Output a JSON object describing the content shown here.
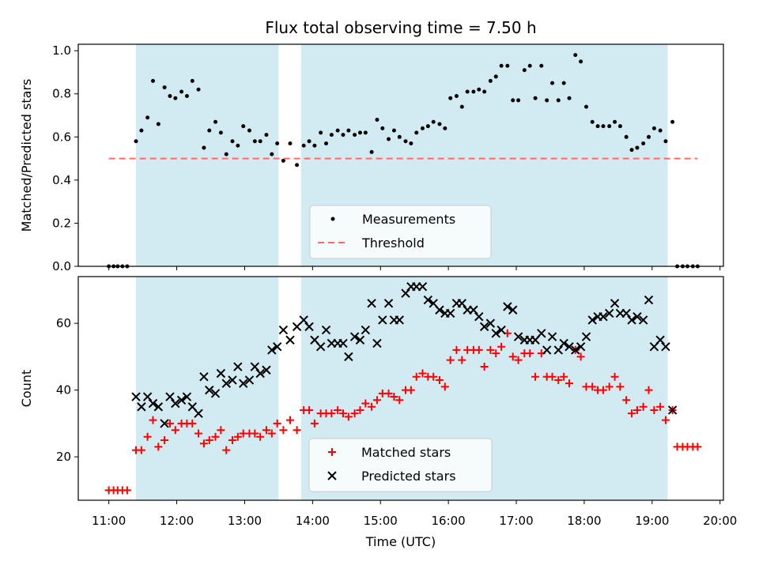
{
  "chart_data": {
    "title": "Flux total observing time = 7.50 h",
    "xlabel": "Time (UTC)",
    "x_ticks": [
      "11:00",
      "12:00",
      "13:00",
      "14:00",
      "15:00",
      "16:00",
      "17:00",
      "18:00",
      "19:00",
      "20:00"
    ],
    "x_range_hours": [
      10.55,
      20.05
    ],
    "observing_windows_hours": [
      [
        11.4,
        13.5
      ],
      [
        13.83,
        19.23
      ]
    ],
    "window_color": "#add8e6",
    "panels": [
      {
        "type": "scatter",
        "ylabel": "Matched/Predicted stars",
        "ylim": [
          0,
          1.03
        ],
        "y_ticks": [
          "0.0",
          "0.2",
          "0.4",
          "0.6",
          "0.8",
          "1.0"
        ],
        "legend_position": "lower-center",
        "series": [
          {
            "name": "Measurements",
            "marker": "dot",
            "color": "#000000",
            "x_hours": [
              11.0,
              11.07,
              11.13,
              11.2,
              11.27,
              11.4,
              11.48,
              11.57,
              11.65,
              11.73,
              11.82,
              11.9,
              11.98,
              12.07,
              12.15,
              12.23,
              12.32,
              12.4,
              12.48,
              12.57,
              12.65,
              12.73,
              12.82,
              12.9,
              12.98,
              13.07,
              13.15,
              13.23,
              13.32,
              13.4,
              13.48,
              13.57,
              13.67,
              13.77,
              13.87,
              13.95,
              14.03,
              14.12,
              14.2,
              14.28,
              14.37,
              14.45,
              14.53,
              14.62,
              14.7,
              14.78,
              14.87,
              14.95,
              15.03,
              15.12,
              15.2,
              15.28,
              15.37,
              15.45,
              15.53,
              15.62,
              15.7,
              15.78,
              15.87,
              15.95,
              16.03,
              16.12,
              16.2,
              16.28,
              16.37,
              16.45,
              16.53,
              16.62,
              16.7,
              16.78,
              16.87,
              16.95,
              17.03,
              17.12,
              17.2,
              17.28,
              17.37,
              17.45,
              17.53,
              17.62,
              17.7,
              17.78,
              17.87,
              17.95,
              18.03,
              18.12,
              18.2,
              18.28,
              18.37,
              18.45,
              18.53,
              18.62,
              18.7,
              18.78,
              18.87,
              18.95,
              19.03,
              19.12,
              19.2,
              19.3,
              19.37,
              19.45,
              19.52,
              19.6,
              19.67
            ],
            "y": [
              0.0,
              0.0,
              0.0,
              0.0,
              0.0,
              0.58,
              0.63,
              0.69,
              0.86,
              0.66,
              0.83,
              0.79,
              0.78,
              0.81,
              0.79,
              0.86,
              0.82,
              0.55,
              0.63,
              0.67,
              0.62,
              0.52,
              0.58,
              0.56,
              0.65,
              0.63,
              0.58,
              0.58,
              0.61,
              0.52,
              0.57,
              0.49,
              0.57,
              0.47,
              0.56,
              0.58,
              0.56,
              0.62,
              0.57,
              0.61,
              0.63,
              0.61,
              0.63,
              0.61,
              0.62,
              0.62,
              0.53,
              0.68,
              0.64,
              0.59,
              0.63,
              0.6,
              0.58,
              0.57,
              0.62,
              0.64,
              0.65,
              0.67,
              0.66,
              0.64,
              0.78,
              0.79,
              0.74,
              0.81,
              0.81,
              0.82,
              0.81,
              0.86,
              0.88,
              0.93,
              0.93,
              0.77,
              0.77,
              0.91,
              0.93,
              0.78,
              0.93,
              0.77,
              0.85,
              0.77,
              0.85,
              0.78,
              0.98,
              0.95,
              0.74,
              0.67,
              0.65,
              0.65,
              0.65,
              0.67,
              0.65,
              0.6,
              0.54,
              0.55,
              0.57,
              0.6,
              0.64,
              0.63,
              0.58,
              0.67,
              0.0,
              0.0,
              0.0,
              0.0,
              0.0
            ]
          },
          {
            "name": "Threshold",
            "marker": "dashed-line",
            "color": "#ff6b6b",
            "x_hours": [
              11.0,
              19.67
            ],
            "y": [
              0.5,
              0.5
            ]
          }
        ]
      },
      {
        "type": "scatter",
        "ylabel": "Count",
        "ylim": [
          7,
          74
        ],
        "y_ticks": [
          "20",
          "40",
          "60"
        ],
        "legend_position": "lower-center",
        "series": [
          {
            "name": "Matched stars",
            "marker": "plus",
            "color": "#ff0000",
            "x_hours": [
              11.0,
              11.07,
              11.13,
              11.2,
              11.27,
              11.4,
              11.48,
              11.57,
              11.65,
              11.73,
              11.82,
              11.9,
              11.98,
              12.07,
              12.15,
              12.23,
              12.32,
              12.4,
              12.48,
              12.57,
              12.65,
              12.73,
              12.82,
              12.9,
              12.98,
              13.07,
              13.15,
              13.23,
              13.32,
              13.4,
              13.48,
              13.57,
              13.67,
              13.77,
              13.87,
              13.95,
              14.03,
              14.12,
              14.2,
              14.28,
              14.37,
              14.45,
              14.53,
              14.62,
              14.7,
              14.78,
              14.87,
              14.95,
              15.03,
              15.12,
              15.2,
              15.28,
              15.37,
              15.45,
              15.53,
              15.62,
              15.7,
              15.78,
              15.87,
              15.95,
              16.03,
              16.12,
              16.2,
              16.28,
              16.37,
              16.45,
              16.53,
              16.62,
              16.7,
              16.78,
              16.87,
              16.95,
              17.03,
              17.12,
              17.2,
              17.28,
              17.37,
              17.45,
              17.53,
              17.62,
              17.7,
              17.78,
              17.87,
              17.95,
              18.03,
              18.12,
              18.2,
              18.28,
              18.37,
              18.45,
              18.53,
              18.62,
              18.7,
              18.78,
              18.87,
              18.95,
              19.03,
              19.12,
              19.2,
              19.3,
              19.37,
              19.45,
              19.52,
              19.6,
              19.67
            ],
            "y": [
              10,
              10,
              10,
              10,
              10,
              22,
              22,
              26,
              31,
              23,
              25,
              30,
              28,
              30,
              30,
              30,
              27,
              24,
              25,
              26,
              28,
              22,
              25,
              26,
              27,
              27,
              27,
              26,
              28,
              27,
              30,
              28,
              31,
              28,
              34,
              34,
              30,
              33,
              33,
              33,
              34,
              33,
              32,
              33,
              34,
              36,
              35,
              37,
              39,
              39,
              38,
              37,
              40,
              40,
              44,
              45,
              44,
              44,
              43,
              41,
              49,
              52,
              49,
              52,
              52,
              52,
              47,
              52,
              51,
              53,
              57,
              50,
              49,
              51,
              51,
              44,
              51,
              44,
              44,
              43,
              44,
              42,
              52,
              50,
              41,
              41,
              40,
              40,
              41,
              44,
              41,
              37,
              33,
              34,
              35,
              40,
              34,
              35,
              31,
              34,
              23,
              23,
              23,
              23,
              23
            ]
          },
          {
            "name": "Predicted stars",
            "marker": "x",
            "color": "#000000",
            "x_hours": [
              11.4,
              11.48,
              11.57,
              11.65,
              11.73,
              11.82,
              11.9,
              11.98,
              12.07,
              12.15,
              12.23,
              12.32,
              12.4,
              12.48,
              12.57,
              12.65,
              12.73,
              12.82,
              12.9,
              12.98,
              13.07,
              13.15,
              13.23,
              13.32,
              13.4,
              13.48,
              13.57,
              13.67,
              13.77,
              13.87,
              13.95,
              14.03,
              14.12,
              14.2,
              14.28,
              14.37,
              14.45,
              14.53,
              14.62,
              14.7,
              14.78,
              14.87,
              14.95,
              15.03,
              15.12,
              15.2,
              15.28,
              15.37,
              15.45,
              15.53,
              15.62,
              15.7,
              15.78,
              15.87,
              15.95,
              16.03,
              16.12,
              16.2,
              16.28,
              16.37,
              16.45,
              16.53,
              16.62,
              16.7,
              16.78,
              16.87,
              16.95,
              17.03,
              17.12,
              17.2,
              17.28,
              17.37,
              17.45,
              17.53,
              17.62,
              17.7,
              17.78,
              17.87,
              17.95,
              18.03,
              18.12,
              18.2,
              18.28,
              18.37,
              18.45,
              18.53,
              18.62,
              18.7,
              18.78,
              18.87,
              18.95,
              19.03,
              19.12,
              19.2,
              19.3
            ],
            "y": [
              38,
              35,
              38,
              36,
              35,
              30,
              38,
              36,
              37,
              38,
              35,
              33,
              44,
              40,
              39,
              45,
              42,
              43,
              47,
              42,
              43,
              47,
              45,
              46,
              52,
              53,
              58,
              55,
              59,
              61,
              59,
              55,
              53,
              58,
              54,
              54,
              54,
              50,
              56,
              55,
              58,
              66,
              54,
              61,
              66,
              61,
              61,
              69,
              71,
              71,
              71,
              67,
              66,
              64,
              63,
              63,
              66,
              66,
              64,
              64,
              62,
              59,
              60,
              57,
              58,
              65,
              64,
              56,
              55,
              55,
              55,
              57,
              52,
              56,
              52,
              54,
              53,
              52,
              53,
              56,
              61,
              62,
              62,
              63,
              66,
              63,
              63,
              61,
              62,
              61,
              67,
              53,
              55,
              53,
              34
            ]
          }
        ]
      }
    ]
  }
}
